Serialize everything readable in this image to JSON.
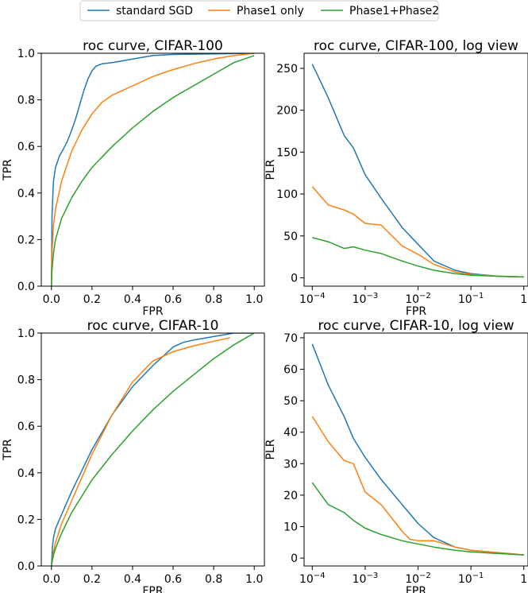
{
  "legend": {
    "entries": [
      {
        "label": "standard SGD",
        "color": "#1f77b4"
      },
      {
        "label": "Phase1 only",
        "color": "#ff7f0e"
      },
      {
        "label": "Phase1+Phase2",
        "color": "#2ca02c"
      }
    ]
  },
  "chart_data": [
    {
      "type": "line",
      "title": "roc curve, CIFAR-100",
      "xlabel": "FPR",
      "ylabel": "TPR",
      "xlim": [
        -0.05,
        1.05
      ],
      "ylim": [
        0,
        1
      ],
      "x_ticks": [
        "0.0",
        "0.2",
        "0.4",
        "0.6",
        "0.8",
        "1.0"
      ],
      "y_ticks": [
        "0.0",
        "0.2",
        "0.4",
        "0.6",
        "0.8",
        "1.0"
      ],
      "series": [
        {
          "name": "standard SGD",
          "color": "#1f77b4",
          "x": [
            0,
            0.003,
            0.01,
            0.02,
            0.04,
            0.06,
            0.08,
            0.1,
            0.12,
            0.14,
            0.16,
            0.18,
            0.2,
            0.22,
            0.25,
            0.3,
            0.4,
            0.5,
            0.6,
            1.0
          ],
          "y": [
            0,
            0.3,
            0.45,
            0.51,
            0.56,
            0.59,
            0.625,
            0.67,
            0.72,
            0.78,
            0.84,
            0.89,
            0.925,
            0.945,
            0.955,
            0.96,
            0.975,
            0.99,
            0.995,
            1.0
          ]
        },
        {
          "name": "Phase1 only",
          "color": "#ff7f0e",
          "x": [
            0,
            0.002,
            0.01,
            0.02,
            0.05,
            0.1,
            0.15,
            0.2,
            0.25,
            0.3,
            0.4,
            0.5,
            0.6,
            0.7,
            0.8,
            0.9,
            1.0
          ],
          "y": [
            0,
            0.13,
            0.26,
            0.33,
            0.45,
            0.58,
            0.67,
            0.74,
            0.79,
            0.82,
            0.86,
            0.9,
            0.93,
            0.955,
            0.975,
            0.99,
            1.0
          ]
        },
        {
          "name": "Phase1+Phase2",
          "color": "#2ca02c",
          "x": [
            0,
            0.002,
            0.01,
            0.02,
            0.05,
            0.1,
            0.15,
            0.2,
            0.3,
            0.4,
            0.5,
            0.6,
            0.7,
            0.8,
            0.9,
            1.0
          ],
          "y": [
            0,
            0.06,
            0.14,
            0.2,
            0.29,
            0.38,
            0.45,
            0.51,
            0.6,
            0.68,
            0.75,
            0.81,
            0.86,
            0.91,
            0.96,
            0.99
          ]
        }
      ]
    },
    {
      "type": "line",
      "title": "roc curve, CIFAR-100, log view",
      "xlabel": "FPR",
      "ylabel": "PLR",
      "xscale": "log",
      "xlim": [
        7e-05,
        1.2
      ],
      "ylim": [
        -10,
        268
      ],
      "x_ticks": [
        "10^-4",
        "10^-3",
        "10^-2",
        "10^-1",
        "1"
      ],
      "y_ticks": [
        "0",
        "50",
        "100",
        "150",
        "200",
        "250"
      ],
      "series": [
        {
          "name": "standard SGD",
          "color": "#1f77b4",
          "x": [
            0.0001,
            0.0002,
            0.0004,
            0.0006,
            0.001,
            0.002,
            0.005,
            0.01,
            0.02,
            0.05,
            0.1,
            0.3,
            1.0
          ],
          "y": [
            255,
            215,
            170,
            155,
            123,
            95,
            60,
            40,
            20,
            9,
            5,
            2,
            1
          ]
        },
        {
          "name": "Phase1 only",
          "color": "#ff7f0e",
          "x": [
            0.0001,
            0.0002,
            0.0004,
            0.0006,
            0.001,
            0.002,
            0.005,
            0.01,
            0.02,
            0.05,
            0.1,
            0.3,
            1.0
          ],
          "y": [
            109,
            87,
            81,
            76,
            65,
            63,
            38,
            28,
            16,
            7,
            4,
            2,
            1
          ]
        },
        {
          "name": "Phase1+Phase2",
          "color": "#2ca02c",
          "x": [
            0.0001,
            0.0002,
            0.0004,
            0.0006,
            0.001,
            0.002,
            0.005,
            0.01,
            0.02,
            0.05,
            0.1,
            0.3,
            1.0
          ],
          "y": [
            48,
            43,
            35,
            37,
            33,
            29,
            20,
            14,
            9,
            5,
            3,
            2,
            1
          ]
        }
      ]
    },
    {
      "type": "line",
      "title": "roc curve, CIFAR-10",
      "xlabel": "FPR",
      "ylabel": "TPR",
      "xlim": [
        -0.05,
        1.05
      ],
      "ylim": [
        0,
        1
      ],
      "x_ticks": [
        "0.0",
        "0.2",
        "0.4",
        "0.6",
        "0.8",
        "1.0"
      ],
      "y_ticks": [
        "0.0",
        "0.2",
        "0.4",
        "0.6",
        "0.8",
        "1.0"
      ],
      "series": [
        {
          "name": "standard SGD",
          "color": "#1f77b4",
          "x": [
            0,
            0.005,
            0.01,
            0.02,
            0.05,
            0.1,
            0.15,
            0.2,
            0.3,
            0.4,
            0.5,
            0.55,
            0.6,
            0.65,
            0.7,
            0.8,
            0.9,
            1.0
          ],
          "y": [
            0,
            0.08,
            0.12,
            0.16,
            0.22,
            0.32,
            0.41,
            0.5,
            0.65,
            0.77,
            0.86,
            0.9,
            0.94,
            0.96,
            0.97,
            0.985,
            1.0,
            1.0
          ]
        },
        {
          "name": "Phase1 only",
          "color": "#ff7f0e",
          "x": [
            0,
            0.005,
            0.01,
            0.02,
            0.05,
            0.1,
            0.15,
            0.2,
            0.3,
            0.4,
            0.5,
            0.6,
            0.7,
            0.8,
            0.88
          ],
          "y": [
            0,
            0.03,
            0.06,
            0.1,
            0.18,
            0.28,
            0.38,
            0.48,
            0.65,
            0.79,
            0.88,
            0.92,
            0.945,
            0.965,
            0.98
          ]
        },
        {
          "name": "Phase1+Phase2",
          "color": "#2ca02c",
          "x": [
            0,
            0.005,
            0.01,
            0.02,
            0.05,
            0.1,
            0.15,
            0.2,
            0.3,
            0.4,
            0.5,
            0.6,
            0.7,
            0.8,
            0.9,
            1.0
          ],
          "y": [
            0,
            0.025,
            0.045,
            0.075,
            0.14,
            0.23,
            0.3,
            0.37,
            0.48,
            0.58,
            0.67,
            0.75,
            0.82,
            0.89,
            0.95,
            1.0
          ]
        }
      ]
    },
    {
      "type": "line",
      "title": "roc curve, CIFAR-10, log view",
      "xlabel": "FPR",
      "ylabel": "PLR",
      "xscale": "log",
      "xlim": [
        7e-05,
        1.2
      ],
      "ylim": [
        -2.5,
        71.5
      ],
      "x_ticks": [
        "10^-4",
        "10^-3",
        "10^-2",
        "10^-1",
        "1"
      ],
      "y_ticks": [
        "0",
        "10",
        "20",
        "30",
        "40",
        "50",
        "60",
        "70"
      ],
      "series": [
        {
          "name": "standard SGD",
          "color": "#1f77b4",
          "x": [
            0.0001,
            0.0002,
            0.0004,
            0.0006,
            0.001,
            0.002,
            0.005,
            0.01,
            0.02,
            0.05,
            0.1,
            0.3,
            1.0
          ],
          "y": [
            68,
            55,
            45,
            38,
            32,
            25,
            17,
            11,
            6.5,
            3.5,
            2.5,
            1.8,
            1
          ]
        },
        {
          "name": "Phase1 only",
          "color": "#ff7f0e",
          "x": [
            0.0001,
            0.0002,
            0.0004,
            0.0006,
            0.001,
            0.002,
            0.005,
            0.007,
            0.01,
            0.02,
            0.05,
            0.1,
            0.3,
            1.0
          ],
          "y": [
            45,
            37,
            31,
            30,
            21,
            17,
            8.5,
            6,
            5.5,
            5.5,
            3.5,
            2.5,
            1.8,
            1
          ]
        },
        {
          "name": "Phase1+Phase2",
          "color": "#2ca02c",
          "x": [
            0.0001,
            0.0002,
            0.0004,
            0.0006,
            0.001,
            0.002,
            0.005,
            0.01,
            0.02,
            0.05,
            0.1,
            0.3,
            1.0
          ],
          "y": [
            24,
            17,
            14.5,
            12,
            9.5,
            7.5,
            5.5,
            4.5,
            3.5,
            2.5,
            2,
            1.5,
            1
          ]
        }
      ]
    }
  ]
}
